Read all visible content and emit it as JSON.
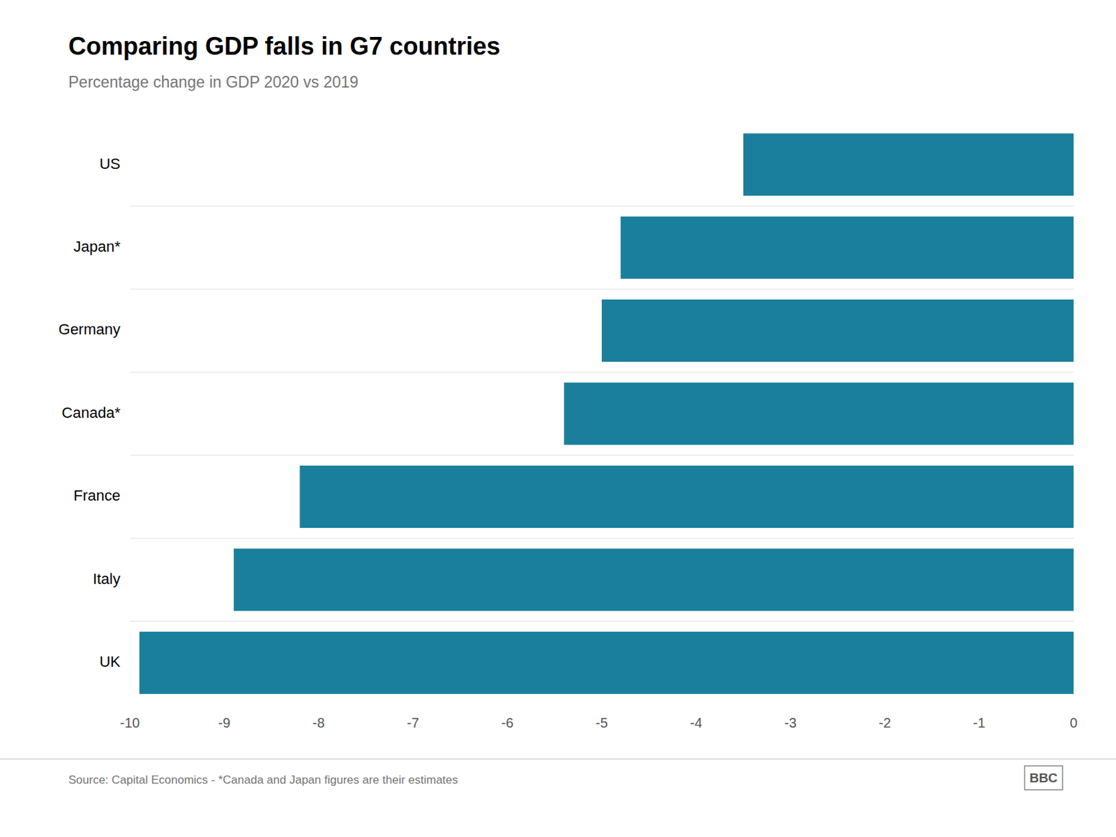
{
  "chart_data": {
    "type": "bar",
    "orientation": "horizontal",
    "title": "Comparing GDP falls in G7 countries",
    "subtitle": "Percentage change in GDP 2020 vs 2019",
    "categories": [
      "US",
      "Japan*",
      "Germany",
      "Canada*",
      "France",
      "Italy",
      "UK"
    ],
    "values": [
      -3.5,
      -4.8,
      -5.0,
      -5.4,
      -8.2,
      -8.9,
      -9.9
    ],
    "color": "#1a7f9c",
    "xlim": [
      -10,
      0
    ],
    "xticks": [
      -10,
      -9,
      -8,
      -7,
      -6,
      -5,
      -4,
      -3,
      -2,
      -1,
      0
    ],
    "grid": false,
    "annotations": [
      "Source: Capital Economics - *Canada and Japan figures are their estimates",
      "BBC"
    ]
  }
}
